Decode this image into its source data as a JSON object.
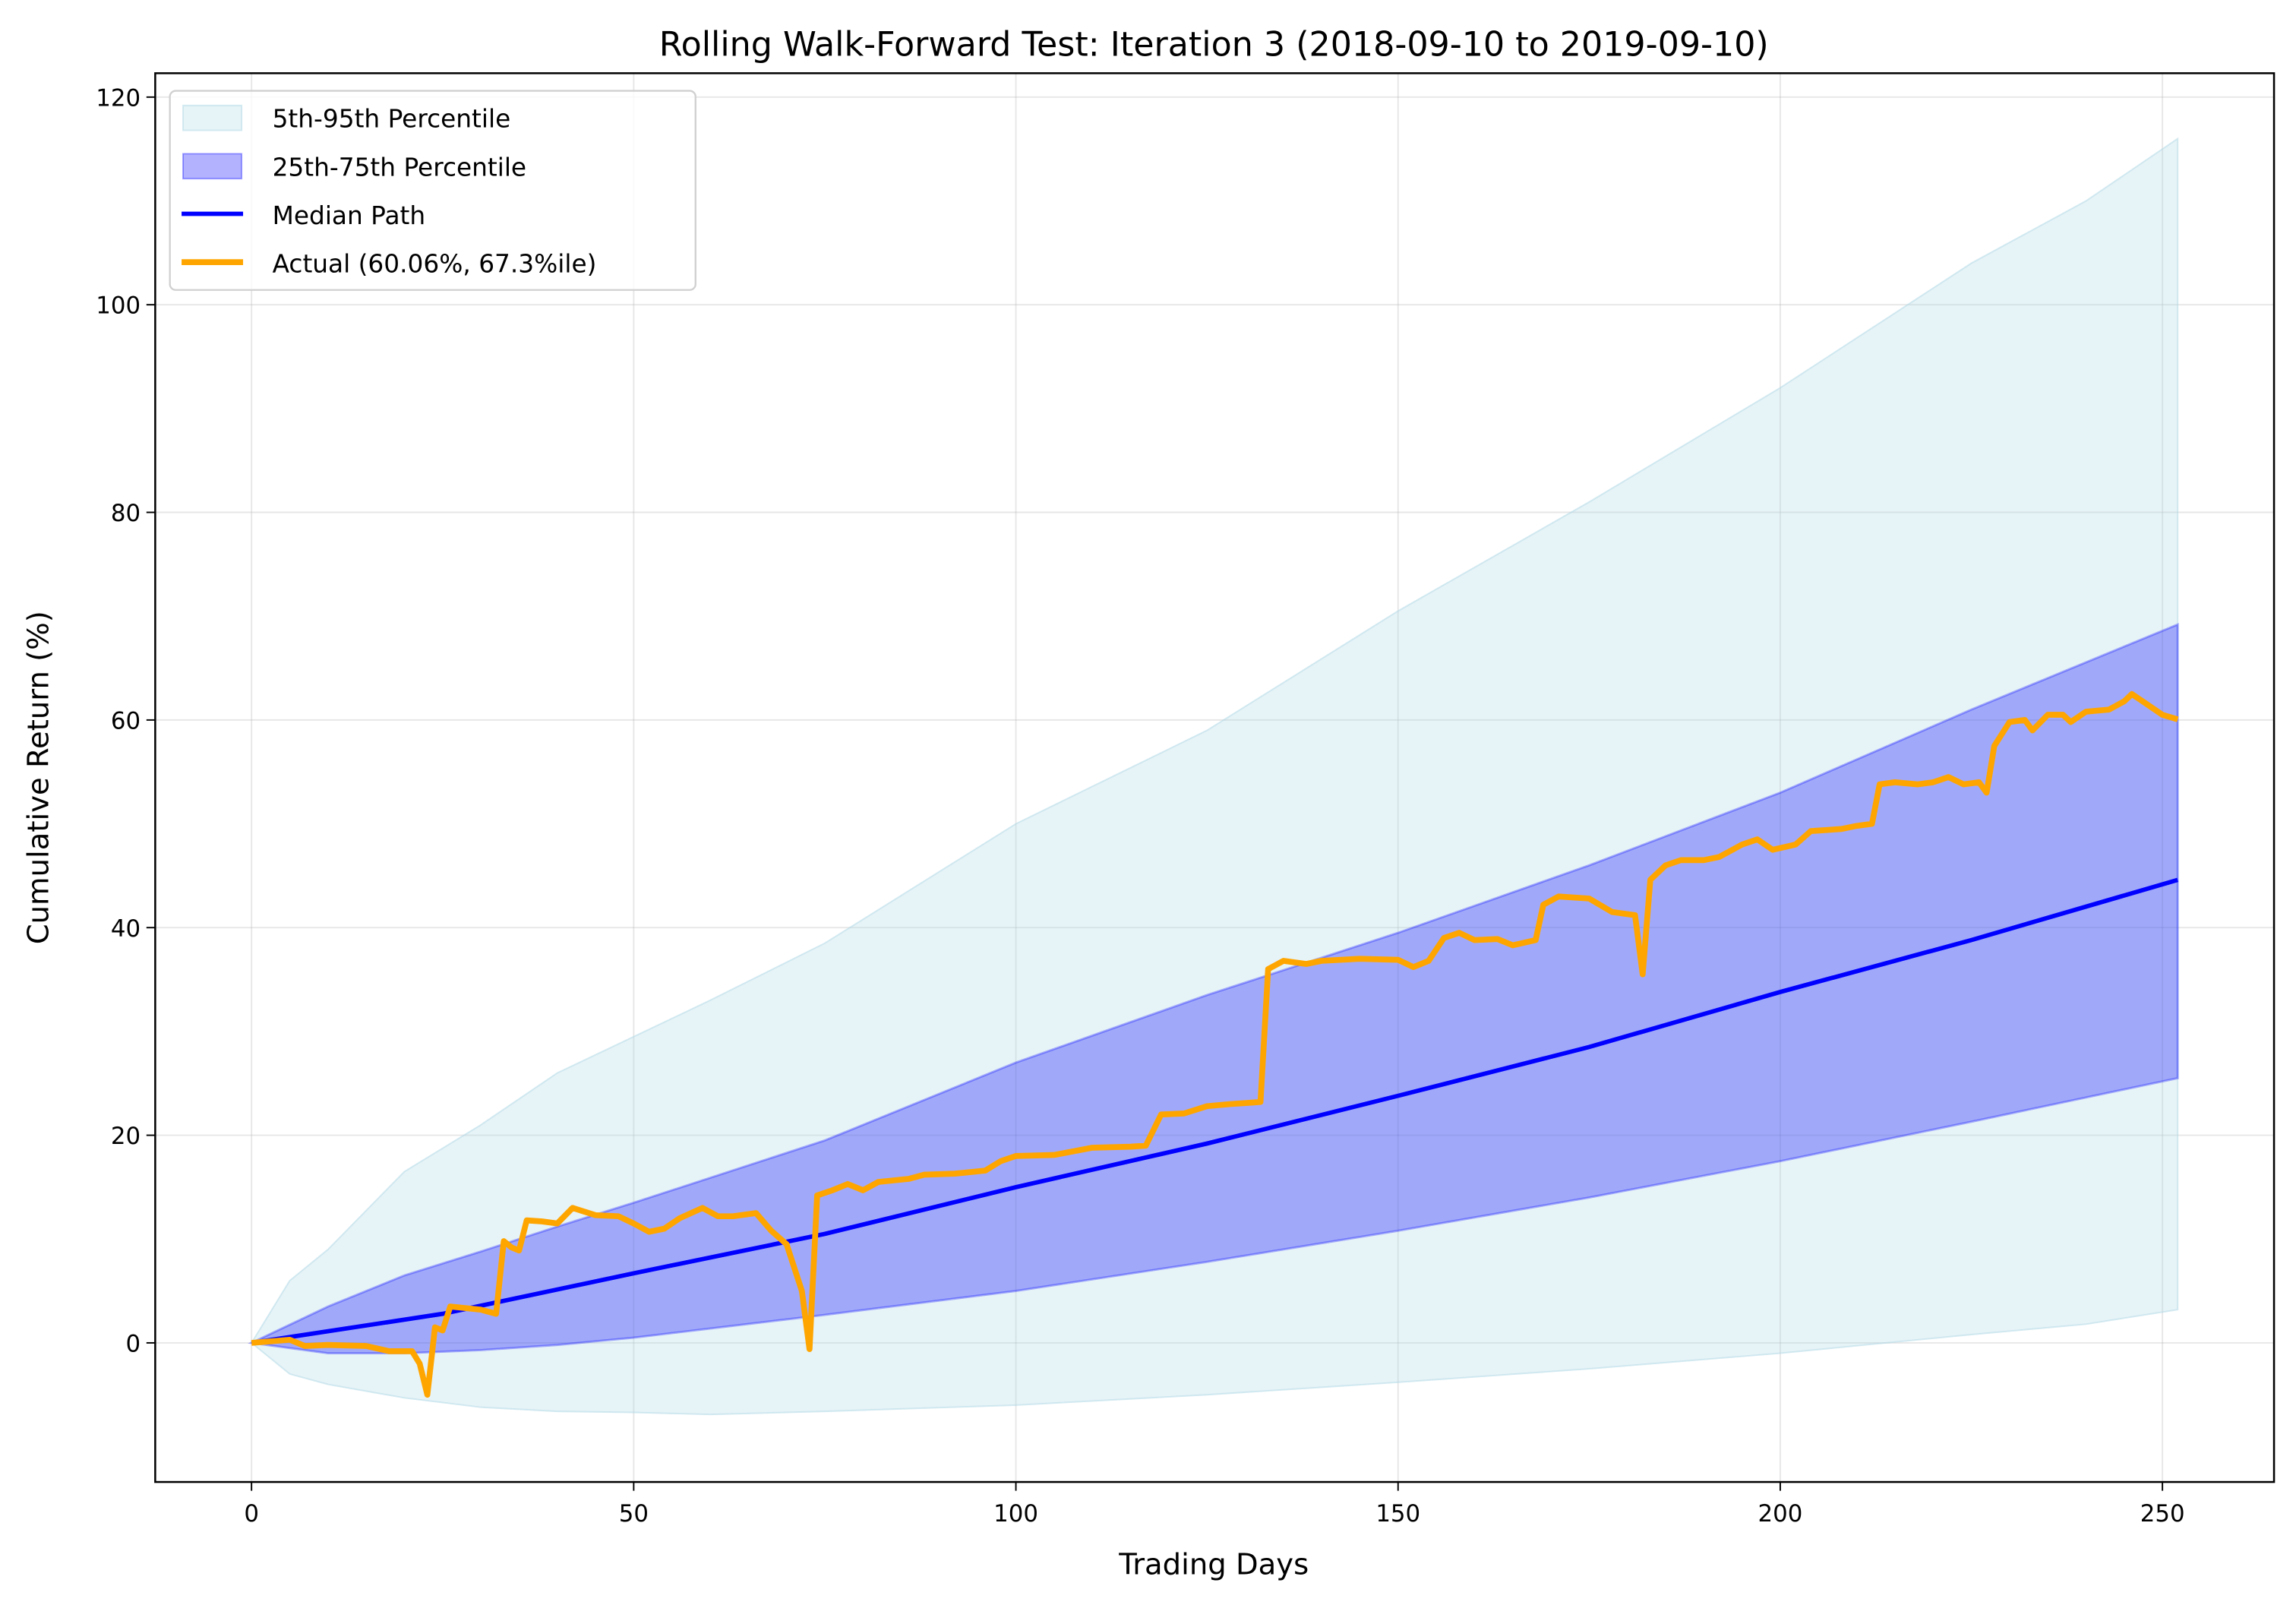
{
  "chart_data": {
    "type": "line",
    "title": "Rolling Walk-Forward Test: Iteration 3 (2018-09-10 to 2019-09-10)",
    "xlabel": "Trading Days",
    "ylabel": "Cumulative Return (%)",
    "xlim": [
      -12.6,
      264.6
    ],
    "ylim": [
      -13.4,
      122.3
    ],
    "xticks": [
      0,
      50,
      100,
      150,
      200,
      250
    ],
    "yticks": [
      0,
      20,
      40,
      60,
      80,
      100,
      120
    ],
    "grid": true,
    "legend_position": "top-left",
    "legend": [
      {
        "label": "5th-95th Percentile",
        "kind": "band",
        "color": "#add8e6"
      },
      {
        "label": "25th-75th Percentile",
        "kind": "band",
        "color": "#0000ff"
      },
      {
        "label": "Median Path",
        "kind": "line",
        "color": "#0000ff"
      },
      {
        "label": "Actual (60.06%, 67.3%ile)",
        "kind": "line",
        "color": "#ffa500"
      }
    ],
    "bands": {
      "p5_p95": {
        "x": [
          0,
          5,
          10,
          20,
          30,
          40,
          50,
          60,
          75,
          100,
          125,
          150,
          175,
          200,
          225,
          240,
          252
        ],
        "low": [
          0,
          -3,
          -4,
          -5.3,
          -6.2,
          -6.6,
          -6.7,
          -6.9,
          -6.6,
          -6,
          -5,
          -3.8,
          -2.5,
          -1,
          0.8,
          1.8,
          3.2
        ],
        "high": [
          0,
          6,
          9,
          16.5,
          21,
          26,
          29.5,
          33,
          38.5,
          50,
          59,
          70.5,
          81,
          92,
          104,
          110,
          116
        ]
      },
      "p25_p75": {
        "x": [
          0,
          10,
          20,
          30,
          40,
          50,
          75,
          100,
          125,
          150,
          175,
          200,
          225,
          252
        ],
        "low": [
          0,
          -1,
          -1,
          -0.7,
          -0.2,
          0.5,
          2.7,
          5,
          7.8,
          10.8,
          14,
          17.5,
          21.3,
          25.5
        ],
        "high": [
          0,
          3.5,
          6.5,
          8.8,
          11.2,
          13.5,
          19.5,
          27,
          33.5,
          39.5,
          46,
          53,
          61,
          69.2
        ]
      }
    },
    "series": [
      {
        "name": "Median Path",
        "x": [
          0,
          25,
          50,
          75,
          100,
          125,
          150,
          175,
          200,
          225,
          252
        ],
        "y": [
          0,
          2.8,
          6.7,
          10.5,
          15,
          19.2,
          23.8,
          28.5,
          33.8,
          38.8,
          44.6
        ]
      },
      {
        "name": "Actual (60.06%, 67.3%ile)",
        "x": [
          0,
          5,
          7,
          10,
          15,
          18,
          21,
          22,
          23,
          24,
          25,
          26,
          30,
          32,
          33,
          34,
          35,
          36,
          38,
          40,
          42,
          45,
          48,
          50,
          52,
          54,
          56,
          59,
          61,
          63,
          66,
          68,
          70,
          72,
          73,
          74,
          76,
          78,
          80,
          82,
          86,
          88,
          92,
          96,
          98,
          100,
          105,
          110,
          115,
          117,
          119,
          122,
          125,
          128,
          132,
          133,
          135,
          138,
          140,
          145,
          150,
          152,
          154,
          156,
          158,
          160,
          163,
          165,
          168,
          169,
          171,
          175,
          178,
          181,
          182,
          183,
          185,
          187,
          190,
          192,
          195,
          197,
          199,
          202,
          204,
          208,
          210,
          212,
          213,
          215,
          218,
          220,
          222,
          224,
          226,
          227,
          228,
          230,
          232,
          233,
          235,
          237,
          238,
          240,
          243,
          245,
          246,
          248,
          250,
          252
        ],
        "y": [
          0,
          0.3,
          -0.3,
          -0.2,
          -0.3,
          -0.8,
          -0.8,
          -2,
          -5,
          1.5,
          1.2,
          3.5,
          3.2,
          2.8,
          9.8,
          9.2,
          8.9,
          11.8,
          11.7,
          11.5,
          13,
          12.3,
          12.2,
          11.5,
          10.7,
          11,
          12,
          13,
          12.2,
          12.2,
          12.5,
          10.8,
          9.5,
          5,
          -0.6,
          14.2,
          14.7,
          15.3,
          14.7,
          15.5,
          15.8,
          16.2,
          16.3,
          16.6,
          17.5,
          18,
          18.1,
          18.8,
          18.9,
          19,
          22,
          22.1,
          22.8,
          23,
          23.2,
          36,
          36.8,
          36.5,
          36.8,
          37,
          36.9,
          36.2,
          36.8,
          39,
          39.5,
          38.8,
          38.9,
          38.3,
          38.8,
          42.2,
          43,
          42.8,
          41.5,
          41.2,
          35.5,
          44.6,
          46,
          46.5,
          46.5,
          46.8,
          48,
          48.5,
          47.5,
          48,
          49.3,
          49.5,
          49.8,
          50,
          53.8,
          54,
          53.8,
          54,
          54.5,
          53.8,
          54,
          53,
          57.5,
          59.8,
          60,
          59,
          60.5,
          60.5,
          59.8,
          60.8,
          61,
          61.8,
          62.5,
          61.5,
          60.5,
          60.06
        ]
      }
    ]
  }
}
